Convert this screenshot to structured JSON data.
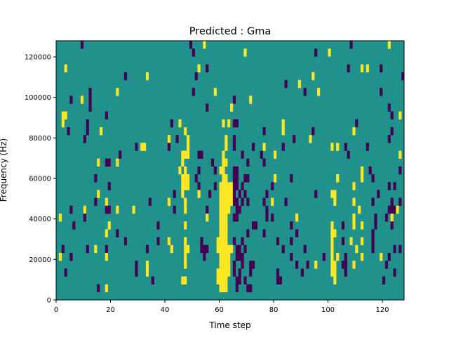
{
  "chart_data": {
    "type": "heatmap",
    "title": "Predicted : Gma",
    "xlabel": "Time step",
    "ylabel": "Frequency (Hz)",
    "xlim": [
      0,
      128
    ],
    "ylim": [
      0,
      128000
    ],
    "n_time_steps": 128,
    "n_freq_bins": 33,
    "xticks": [
      0,
      20,
      40,
      60,
      80,
      100,
      120
    ],
    "xtick_labels": [
      "0",
      "20",
      "40",
      "60",
      "80",
      "100",
      "120"
    ],
    "yticks": [
      0,
      20000,
      40000,
      60000,
      80000,
      100000,
      120000
    ],
    "ytick_labels": [
      "0",
      "20000",
      "40000",
      "60000",
      "80000",
      "100000",
      "120000"
    ],
    "colormap": {
      "background": "#21918c",
      "positive": "#fde725",
      "negative": "#440154"
    },
    "values_legend": {
      "background": 0,
      "positive": 1,
      "negative": -1
    },
    "cells_format": "[time_start, time_end, freq_bin, value]",
    "cells": [
      [
        9,
        9,
        32,
        -1
      ],
      [
        49,
        49,
        32,
        -1
      ],
      [
        54,
        54,
        32,
        1
      ],
      [
        108,
        108,
        32,
        -1
      ],
      [
        122,
        122,
        32,
        1
      ],
      [
        50,
        50,
        31,
        -1
      ],
      [
        69,
        69,
        31,
        1
      ],
      [
        95,
        95,
        31,
        -1
      ],
      [
        100,
        100,
        31,
        1
      ],
      [
        3,
        3,
        29,
        1
      ],
      [
        52,
        52,
        29,
        1
      ],
      [
        55,
        55,
        29,
        -1
      ],
      [
        107,
        107,
        29,
        -1
      ],
      [
        112,
        112,
        29,
        1
      ],
      [
        114,
        114,
        29,
        1
      ],
      [
        119,
        119,
        29,
        -1
      ],
      [
        25,
        25,
        28,
        -1
      ],
      [
        33,
        33,
        28,
        1
      ],
      [
        51,
        51,
        28,
        -1
      ],
      [
        94,
        94,
        28,
        1
      ],
      [
        127,
        127,
        28,
        -1
      ],
      [
        84,
        84,
        27,
        -1
      ],
      [
        89,
        89,
        27,
        1
      ],
      [
        12,
        12,
        26,
        -1
      ],
      [
        22,
        22,
        26,
        1
      ],
      [
        50,
        50,
        26,
        -1
      ],
      [
        58,
        58,
        26,
        1
      ],
      [
        91,
        91,
        26,
        -1
      ],
      [
        96,
        96,
        26,
        1
      ],
      [
        119,
        119,
        26,
        -1
      ],
      [
        5,
        5,
        25,
        -1
      ],
      [
        9,
        9,
        25,
        1
      ],
      [
        12,
        12,
        25,
        -1
      ],
      [
        65,
        65,
        25,
        -1
      ],
      [
        71,
        71,
        25,
        1
      ],
      [
        12,
        12,
        24,
        -1
      ],
      [
        55,
        55,
        24,
        -1
      ],
      [
        64,
        64,
        24,
        1
      ],
      [
        122,
        122,
        24,
        -1
      ],
      [
        2,
        3,
        23,
        1
      ],
      [
        18,
        18,
        23,
        -1
      ],
      [
        123,
        123,
        23,
        -1
      ],
      [
        126,
        126,
        23,
        1
      ],
      [
        2,
        2,
        22,
        1
      ],
      [
        11,
        11,
        22,
        -1
      ],
      [
        42,
        42,
        22,
        -1
      ],
      [
        45,
        45,
        22,
        1
      ],
      [
        61,
        61,
        22,
        1
      ],
      [
        63,
        63,
        22,
        1
      ],
      [
        65,
        66,
        22,
        -1
      ],
      [
        83,
        83,
        22,
        1
      ],
      [
        110,
        110,
        22,
        -1
      ],
      [
        4,
        4,
        21,
        -1
      ],
      [
        11,
        11,
        21,
        -1
      ],
      [
        16,
        16,
        21,
        1
      ],
      [
        47,
        47,
        21,
        1
      ],
      [
        76,
        76,
        21,
        -1
      ],
      [
        83,
        83,
        21,
        1
      ],
      [
        94,
        94,
        21,
        -1
      ],
      [
        109,
        109,
        21,
        1
      ],
      [
        123,
        123,
        21,
        -1
      ],
      [
        10,
        10,
        20,
        -1
      ],
      [
        41,
        41,
        20,
        1
      ],
      [
        44,
        44,
        20,
        -1
      ],
      [
        48,
        48,
        20,
        1
      ],
      [
        62,
        62,
        20,
        1
      ],
      [
        65,
        65,
        20,
        -1
      ],
      [
        87,
        87,
        20,
        -1
      ],
      [
        93,
        93,
        20,
        1
      ],
      [
        122,
        122,
        20,
        -1
      ],
      [
        29,
        29,
        19,
        -1
      ],
      [
        31,
        32,
        19,
        1
      ],
      [
        41,
        41,
        19,
        -1
      ],
      [
        48,
        48,
        19,
        1
      ],
      [
        62,
        62,
        19,
        1
      ],
      [
        65,
        65,
        19,
        -1
      ],
      [
        72,
        72,
        19,
        -1
      ],
      [
        76,
        76,
        19,
        1
      ],
      [
        83,
        83,
        19,
        -1
      ],
      [
        101,
        101,
        19,
        1
      ],
      [
        103,
        103,
        19,
        1
      ],
      [
        106,
        106,
        19,
        -1
      ],
      [
        114,
        114,
        19,
        -1
      ],
      [
        23,
        23,
        18,
        -1
      ],
      [
        46,
        48,
        18,
        1
      ],
      [
        52,
        53,
        18,
        -1
      ],
      [
        61,
        61,
        18,
        1
      ],
      [
        68,
        68,
        18,
        -1
      ],
      [
        75,
        75,
        18,
        -1
      ],
      [
        80,
        80,
        18,
        1
      ],
      [
        107,
        107,
        18,
        -1
      ],
      [
        126,
        126,
        18,
        1
      ],
      [
        15,
        15,
        17,
        1
      ],
      [
        18,
        19,
        17,
        -1
      ],
      [
        22,
        22,
        17,
        1
      ],
      [
        46,
        46,
        17,
        1
      ],
      [
        57,
        57,
        17,
        -1
      ],
      [
        61,
        62,
        17,
        1
      ],
      [
        70,
        70,
        17,
        -1
      ],
      [
        76,
        76,
        17,
        -1
      ],
      [
        45,
        45,
        16,
        1
      ],
      [
        47,
        47,
        16,
        1
      ],
      [
        52,
        52,
        16,
        -1
      ],
      [
        58,
        58,
        16,
        -1
      ],
      [
        60,
        61,
        16,
        1
      ],
      [
        65,
        66,
        16,
        -1
      ],
      [
        112,
        112,
        16,
        1
      ],
      [
        115,
        115,
        16,
        -1
      ],
      [
        126,
        126,
        16,
        -1
      ],
      [
        14,
        14,
        15,
        -1
      ],
      [
        46,
        48,
        15,
        1
      ],
      [
        51,
        51,
        15,
        -1
      ],
      [
        61,
        62,
        15,
        1
      ],
      [
        65,
        66,
        15,
        -1
      ],
      [
        69,
        70,
        15,
        -1
      ],
      [
        80,
        80,
        15,
        1
      ],
      [
        86,
        86,
        15,
        -1
      ],
      [
        103,
        103,
        15,
        1
      ],
      [
        112,
        112,
        15,
        1
      ],
      [
        116,
        116,
        15,
        -1
      ],
      [
        19,
        19,
        14,
        -1
      ],
      [
        46,
        48,
        14,
        1
      ],
      [
        52,
        52,
        14,
        -1
      ],
      [
        58,
        58,
        14,
        -1
      ],
      [
        60,
        64,
        14,
        1
      ],
      [
        65,
        66,
        14,
        -1
      ],
      [
        68,
        68,
        14,
        -1
      ],
      [
        79,
        79,
        14,
        -1
      ],
      [
        109,
        109,
        14,
        1
      ],
      [
        122,
        122,
        14,
        -1
      ],
      [
        124,
        124,
        14,
        -1
      ],
      [
        15,
        15,
        13,
        1
      ],
      [
        43,
        43,
        13,
        -1
      ],
      [
        46,
        46,
        13,
        1
      ],
      [
        52,
        52,
        13,
        1
      ],
      [
        56,
        56,
        13,
        -1
      ],
      [
        60,
        64,
        13,
        1
      ],
      [
        65,
        65,
        13,
        -1
      ],
      [
        67,
        67,
        13,
        -1
      ],
      [
        69,
        69,
        13,
        -1
      ],
      [
        77,
        77,
        13,
        -1
      ],
      [
        95,
        95,
        13,
        -1
      ],
      [
        101,
        102,
        13,
        1
      ],
      [
        118,
        118,
        13,
        -1
      ],
      [
        14,
        14,
        12,
        -1
      ],
      [
        18,
        18,
        12,
        1
      ],
      [
        34,
        34,
        12,
        -1
      ],
      [
        41,
        41,
        12,
        1
      ],
      [
        47,
        47,
        12,
        1
      ],
      [
        60,
        64,
        12,
        1
      ],
      [
        65,
        66,
        12,
        -1
      ],
      [
        68,
        68,
        12,
        -1
      ],
      [
        70,
        70,
        12,
        -1
      ],
      [
        76,
        76,
        12,
        -1
      ],
      [
        79,
        79,
        12,
        1
      ],
      [
        84,
        84,
        12,
        -1
      ],
      [
        102,
        102,
        12,
        1
      ],
      [
        109,
        109,
        12,
        1
      ],
      [
        116,
        116,
        12,
        -1
      ],
      [
        123,
        123,
        12,
        -1
      ],
      [
        126,
        126,
        12,
        -1
      ],
      [
        5,
        5,
        11,
        -1
      ],
      [
        10,
        10,
        11,
        1
      ],
      [
        18,
        19,
        11,
        -1
      ],
      [
        22,
        22,
        11,
        1
      ],
      [
        28,
        28,
        11,
        1
      ],
      [
        43,
        43,
        11,
        -1
      ],
      [
        47,
        47,
        11,
        1
      ],
      [
        55,
        55,
        11,
        -1
      ],
      [
        60,
        63,
        11,
        1
      ],
      [
        66,
        67,
        11,
        -1
      ],
      [
        77,
        77,
        11,
        -1
      ],
      [
        111,
        111,
        11,
        1
      ],
      [
        122,
        124,
        11,
        -1
      ],
      [
        125,
        125,
        11,
        1
      ],
      [
        1,
        1,
        10,
        1
      ],
      [
        10,
        10,
        10,
        -1
      ],
      [
        55,
        55,
        10,
        1
      ],
      [
        60,
        62,
        10,
        1
      ],
      [
        65,
        66,
        10,
        -1
      ],
      [
        77,
        77,
        10,
        -1
      ],
      [
        79,
        79,
        10,
        -1
      ],
      [
        88,
        88,
        10,
        1
      ],
      [
        109,
        109,
        10,
        1
      ],
      [
        117,
        117,
        10,
        -1
      ],
      [
        121,
        121,
        10,
        -1
      ],
      [
        123,
        123,
        10,
        1
      ],
      [
        6,
        6,
        9,
        -1
      ],
      [
        19,
        19,
        9,
        1
      ],
      [
        37,
        37,
        9,
        -1
      ],
      [
        47,
        47,
        9,
        1
      ],
      [
        60,
        62,
        9,
        1
      ],
      [
        72,
        73,
        9,
        -1
      ],
      [
        86,
        86,
        9,
        -1
      ],
      [
        101,
        101,
        9,
        1
      ],
      [
        105,
        105,
        9,
        -1
      ],
      [
        109,
        109,
        9,
        1
      ],
      [
        112,
        112,
        9,
        1
      ],
      [
        117,
        117,
        9,
        -1
      ],
      [
        123,
        123,
        9,
        -1
      ],
      [
        18,
        18,
        8,
        1
      ],
      [
        22,
        22,
        8,
        -1
      ],
      [
        60,
        62,
        8,
        1
      ],
      [
        70,
        70,
        8,
        -1
      ],
      [
        76,
        76,
        8,
        -1
      ],
      [
        88,
        88,
        8,
        -1
      ],
      [
        101,
        102,
        8,
        1
      ],
      [
        116,
        116,
        8,
        -1
      ],
      [
        25,
        25,
        7,
        -1
      ],
      [
        37,
        37,
        7,
        -1
      ],
      [
        41,
        41,
        7,
        1
      ],
      [
        47,
        47,
        7,
        1
      ],
      [
        53,
        53,
        7,
        -1
      ],
      [
        59,
        62,
        7,
        1
      ],
      [
        65,
        65,
        7,
        -1
      ],
      [
        68,
        68,
        7,
        -1
      ],
      [
        81,
        81,
        7,
        -1
      ],
      [
        86,
        86,
        7,
        -1
      ],
      [
        101,
        101,
        7,
        1
      ],
      [
        105,
        105,
        7,
        -1
      ],
      [
        108,
        108,
        7,
        1
      ],
      [
        112,
        112,
        7,
        1
      ],
      [
        116,
        116,
        7,
        -1
      ],
      [
        2,
        2,
        6,
        -1
      ],
      [
        11,
        11,
        6,
        -1
      ],
      [
        14,
        14,
        6,
        1
      ],
      [
        18,
        18,
        6,
        -1
      ],
      [
        33,
        33,
        6,
        -1
      ],
      [
        42,
        42,
        6,
        1
      ],
      [
        47,
        48,
        6,
        1
      ],
      [
        53,
        55,
        6,
        -1
      ],
      [
        59,
        64,
        6,
        1
      ],
      [
        66,
        67,
        6,
        -1
      ],
      [
        69,
        69,
        6,
        -1
      ],
      [
        83,
        83,
        6,
        -1
      ],
      [
        91,
        91,
        6,
        -1
      ],
      [
        101,
        101,
        6,
        1
      ],
      [
        110,
        110,
        6,
        1
      ],
      [
        116,
        116,
        6,
        -1
      ],
      [
        124,
        124,
        6,
        -1
      ],
      [
        126,
        126,
        6,
        -1
      ],
      [
        1,
        1,
        5,
        1
      ],
      [
        5,
        5,
        5,
        -1
      ],
      [
        18,
        18,
        5,
        1
      ],
      [
        47,
        47,
        5,
        1
      ],
      [
        54,
        54,
        5,
        -1
      ],
      [
        60,
        63,
        5,
        1
      ],
      [
        66,
        68,
        5,
        -1
      ],
      [
        86,
        86,
        5,
        -1
      ],
      [
        98,
        98,
        5,
        -1
      ],
      [
        101,
        101,
        5,
        1
      ],
      [
        103,
        103,
        5,
        1
      ],
      [
        106,
        106,
        5,
        -1
      ],
      [
        112,
        112,
        5,
        1
      ],
      [
        119,
        119,
        5,
        1
      ],
      [
        122,
        122,
        5,
        -1
      ],
      [
        29,
        29,
        4,
        -1
      ],
      [
        33,
        33,
        4,
        1
      ],
      [
        47,
        47,
        4,
        1
      ],
      [
        60,
        63,
        4,
        1
      ],
      [
        65,
        65,
        4,
        -1
      ],
      [
        68,
        68,
        4,
        -1
      ],
      [
        71,
        72,
        4,
        -1
      ],
      [
        88,
        88,
        4,
        -1
      ],
      [
        92,
        92,
        4,
        -1
      ],
      [
        95,
        95,
        4,
        1
      ],
      [
        101,
        102,
        4,
        1
      ],
      [
        105,
        106,
        4,
        -1
      ],
      [
        109,
        109,
        4,
        1
      ],
      [
        121,
        121,
        4,
        -1
      ],
      [
        3,
        3,
        3,
        -1
      ],
      [
        29,
        29,
        3,
        -1
      ],
      [
        33,
        33,
        3,
        1
      ],
      [
        59,
        63,
        3,
        1
      ],
      [
        65,
        65,
        3,
        -1
      ],
      [
        67,
        67,
        3,
        -1
      ],
      [
        71,
        71,
        3,
        -1
      ],
      [
        81,
        81,
        3,
        -1
      ],
      [
        90,
        90,
        3,
        -1
      ],
      [
        101,
        102,
        3,
        1
      ],
      [
        106,
        106,
        3,
        -1
      ],
      [
        124,
        124,
        3,
        -1
      ],
      [
        35,
        35,
        2,
        -1
      ],
      [
        46,
        47,
        2,
        1
      ],
      [
        59,
        62,
        2,
        1
      ],
      [
        66,
        67,
        2,
        -1
      ],
      [
        69,
        69,
        2,
        -1
      ],
      [
        81,
        82,
        2,
        -1
      ],
      [
        102,
        102,
        2,
        1
      ],
      [
        120,
        120,
        2,
        -1
      ],
      [
        15,
        15,
        1,
        -1
      ],
      [
        18,
        18,
        1,
        1
      ],
      [
        60,
        62,
        1,
        1
      ],
      [
        66,
        66,
        1,
        -1
      ],
      [
        70,
        71,
        1,
        -1
      ]
    ]
  }
}
